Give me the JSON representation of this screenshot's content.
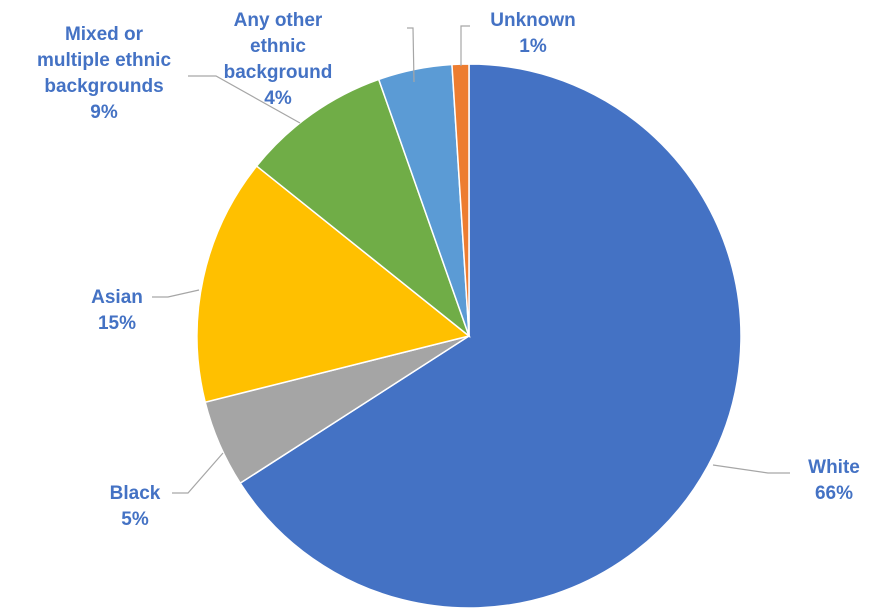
{
  "chart_data": {
    "type": "pie",
    "title": "",
    "start": "top",
    "direction": "clockwise",
    "label_color": "#4472C4",
    "slices": [
      {
        "label": [
          "White"
        ],
        "percent_label": "66%",
        "value": 66.1,
        "color": "#4472C4"
      },
      {
        "label": [
          "Black"
        ],
        "percent_label": "5%",
        "value": 5.2,
        "color": "#A5A5A5"
      },
      {
        "label": [
          "Asian"
        ],
        "percent_label": "15%",
        "value": 14.7,
        "color": "#FFC000"
      },
      {
        "label": [
          "Mixed or",
          "multiple ethnic",
          "backgrounds"
        ],
        "percent_label": "9%",
        "value": 8.9,
        "color": "#70AD47"
      },
      {
        "label": [
          "Any other",
          "ethnic",
          "background"
        ],
        "percent_label": "4%",
        "value": 4.4,
        "color": "#5B9BD5"
      },
      {
        "label": [
          "Unknown"
        ],
        "percent_label": "1%",
        "value": 1.0,
        "color": "#ED7D31"
      }
    ]
  }
}
